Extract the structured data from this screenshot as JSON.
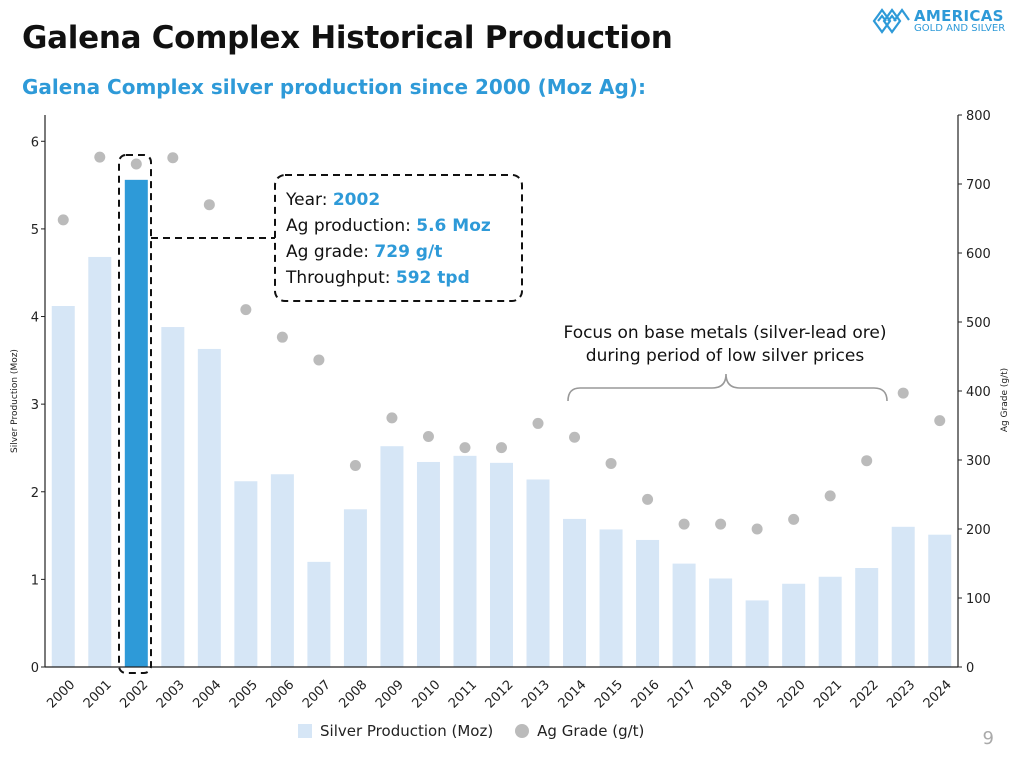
{
  "header": {
    "title": "Galena Complex Historical Production",
    "subtitle": "Galena Complex silver production since 2000 (Moz Ag):"
  },
  "logo": {
    "line1": "AMERICAS",
    "line2": "GOLD AND SILVER"
  },
  "page_number": "9",
  "tooltip": {
    "year_label": "Year:",
    "year_value": "2002",
    "prod_label": "Ag production:",
    "prod_value": "5.6 Moz",
    "grade_label": "Ag grade:",
    "grade_value": "729 g/t",
    "throughput_label": "Throughput:",
    "throughput_value": "592 tpd"
  },
  "annotation": {
    "line1": "Focus on base metals (silver-lead ore)",
    "line2": "during period of low silver prices"
  },
  "legend": {
    "bars": "Silver Production (Moz)",
    "dots": "Ag Grade (g/t)"
  },
  "colors": {
    "bar": "#d6e6f6",
    "highlight": "#2e9ad8",
    "dot": "#bbbbbb",
    "accent": "#2e9ad8"
  },
  "chart_data": {
    "type": "bar",
    "title": "Galena Complex silver production since 2000 (Moz Ag):",
    "xlabel": "",
    "ylabel": "Silver Production (Moz)",
    "y2label": "Ag Grade (g/t)",
    "ylim": [
      0,
      6.3
    ],
    "y2lim": [
      0,
      800
    ],
    "yticks": [
      0,
      1,
      2,
      3,
      4,
      5,
      6
    ],
    "y2ticks": [
      0,
      100,
      200,
      300,
      400,
      500,
      600,
      700,
      800
    ],
    "categories": [
      "2000",
      "2001",
      "2002",
      "2003",
      "2004",
      "2005",
      "2006",
      "2007",
      "2008",
      "2009",
      "2010",
      "2011",
      "2012",
      "2013",
      "2014",
      "2015",
      "2016",
      "2017",
      "2018",
      "2019",
      "2020",
      "2021",
      "2022",
      "2023",
      "2024"
    ],
    "highlight_category": "2002",
    "series": [
      {
        "name": "Silver Production (Moz)",
        "type": "bar",
        "axis": "left",
        "values": [
          4.12,
          4.68,
          5.56,
          3.88,
          3.63,
          2.12,
          2.2,
          1.2,
          1.8,
          2.52,
          2.34,
          2.41,
          2.33,
          2.14,
          1.69,
          1.57,
          1.45,
          1.18,
          1.01,
          0.76,
          0.95,
          1.03,
          1.13,
          1.6,
          1.51
        ]
      },
      {
        "name": "Ag Grade (g/t)",
        "type": "scatter",
        "axis": "right",
        "values": [
          648,
          739,
          729,
          738,
          670,
          518,
          478,
          445,
          292,
          361,
          334,
          318,
          318,
          353,
          333,
          295,
          243,
          207,
          207,
          200,
          214,
          248,
          299,
          397,
          357
        ]
      }
    ]
  }
}
